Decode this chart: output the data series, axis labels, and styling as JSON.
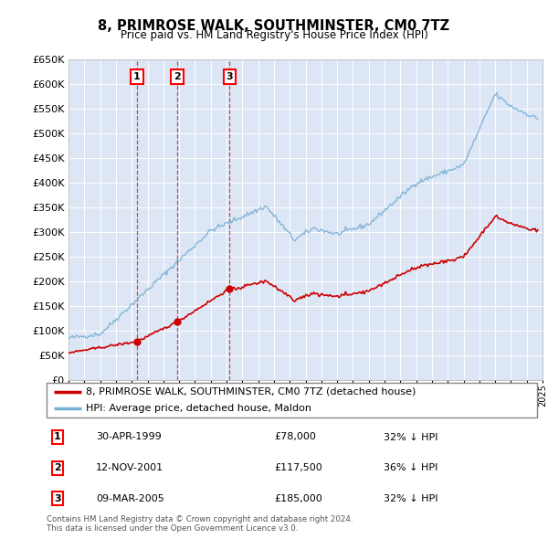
{
  "title": "8, PRIMROSE WALK, SOUTHMINSTER, CM0 7TZ",
  "subtitle": "Price paid vs. HM Land Registry's House Price Index (HPI)",
  "legend_line1": "8, PRIMROSE WALK, SOUTHMINSTER, CM0 7TZ (detached house)",
  "legend_line2": "HPI: Average price, detached house, Maldon",
  "footer": "Contains HM Land Registry data © Crown copyright and database right 2024.\nThis data is licensed under the Open Government Licence v3.0.",
  "transactions": [
    {
      "num": 1,
      "date": "30-APR-1999",
      "price": "£78,000",
      "hpi": "32% ↓ HPI",
      "year": 1999.33
    },
    {
      "num": 2,
      "date": "12-NOV-2001",
      "price": "£117,500",
      "hpi": "36% ↓ HPI",
      "year": 2001.87
    },
    {
      "num": 3,
      "date": "09-MAR-2005",
      "price": "£185,000",
      "hpi": "32% ↓ HPI",
      "year": 2005.19
    }
  ],
  "transaction_prices": [
    78000,
    117500,
    185000
  ],
  "ylim": [
    0,
    650000
  ],
  "yticks": [
    0,
    50000,
    100000,
    150000,
    200000,
    250000,
    300000,
    350000,
    400000,
    450000,
    500000,
    550000,
    600000,
    650000
  ],
  "background_color": "#dce6f5",
  "red_color": "#cc0000",
  "blue_color": "#7ab0d4",
  "grid_color": "#ffffff"
}
